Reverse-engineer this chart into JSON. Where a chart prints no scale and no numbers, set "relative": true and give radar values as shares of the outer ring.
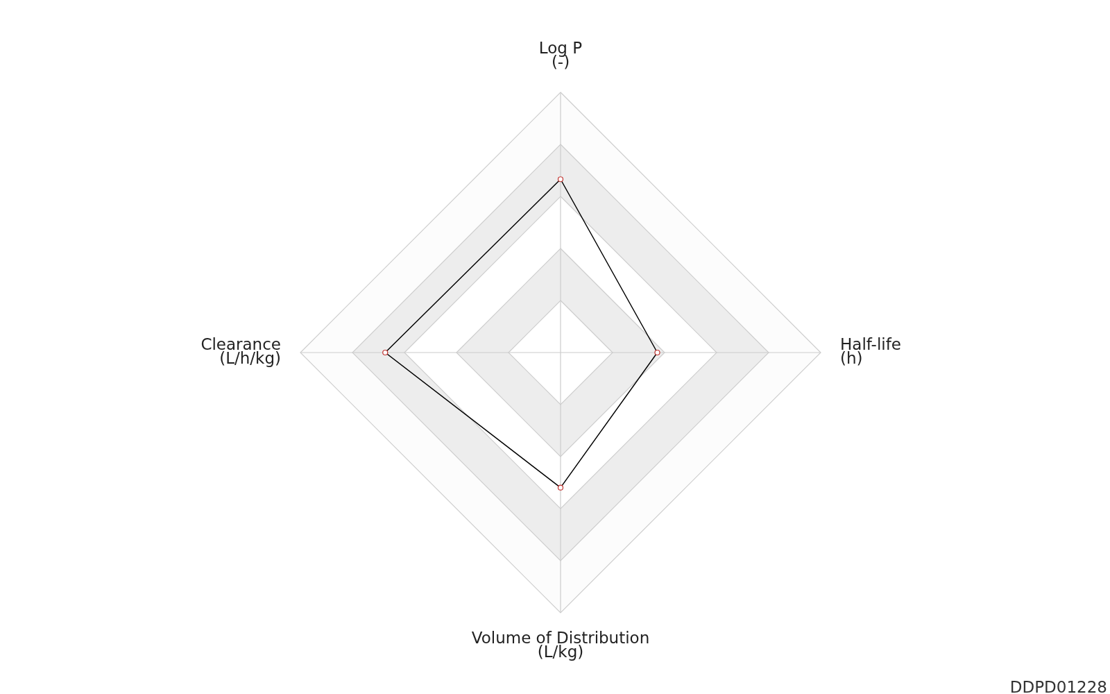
{
  "chart_data": {
    "type": "radar",
    "relative": true,
    "categories": [
      "Log P\n(-)",
      "Half-life\n(h)",
      "Volume of Distribution\n(L/kg)",
      "Clearance\n(L/h/kg)"
    ],
    "series": [
      {
        "color": "#000000",
        "values": [
          0.666,
          0.372,
          0.519,
          0.674
        ]
      }
    ],
    "marker": "circle",
    "annotations": [
      "DDPD01228"
    ]
  }
}
